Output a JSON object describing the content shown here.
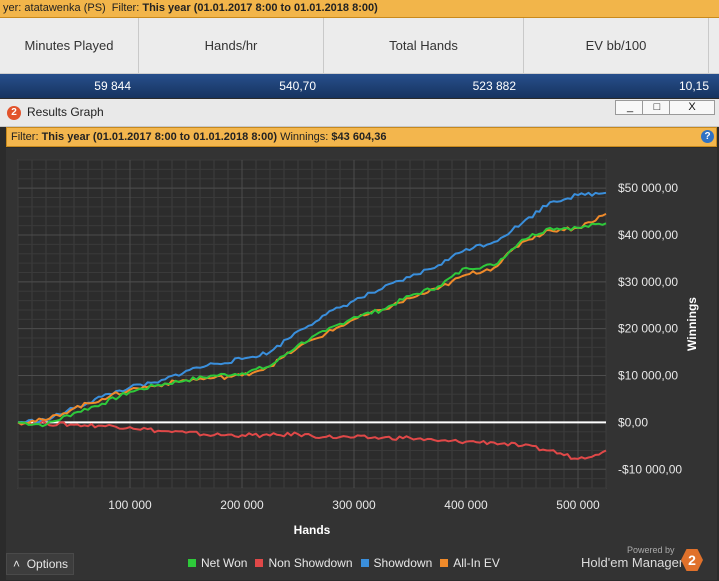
{
  "topbar": {
    "player_prefix": "yer: atatawenka (PS)",
    "filter_label": "Filter:",
    "filter_value": "This year (01.01.2017 8:00 to 01.01.2018 8:00)"
  },
  "stats": {
    "headers": [
      "Minutes Played",
      "Hands/hr",
      "Total Hands",
      "EV bb/100"
    ],
    "values": [
      "59 844",
      "540,70",
      "523 882",
      "10,15"
    ]
  },
  "window": {
    "badge": "2",
    "title": "Results Graph",
    "minimize": "_",
    "maximize": "□",
    "close": "X"
  },
  "filter_bar": {
    "label": "Filter:",
    "value": "This year (01.01.2017 8:00 to 01.01.2018 8:00)",
    "winnings_label": "Winnings:",
    "winnings_value": "$43 604,36",
    "help": "?"
  },
  "options_label": "Options",
  "powered_by": "Powered by",
  "brand_name": "Hold'em Manager",
  "brand_logo": "2",
  "colors": {
    "net_won": "#2ec93a",
    "non_showdown": "#e04848",
    "showdown": "#3a8fdc",
    "all_in_ev": "#f08a2a",
    "accent": "#f3b64d"
  },
  "chart_data": {
    "type": "line",
    "xlabel": "Hands",
    "ylabel": "Winnings",
    "xlim": [
      0,
      525000
    ],
    "ylim": [
      -14000,
      56000
    ],
    "x_ticks": [
      100000,
      200000,
      300000,
      400000,
      500000
    ],
    "x_tick_labels": [
      "100 000",
      "200 000",
      "300 000",
      "400 000",
      "500 000"
    ],
    "y_ticks": [
      50000,
      40000,
      30000,
      20000,
      10000,
      0,
      -10000
    ],
    "y_tick_labels": [
      "$50 000,00",
      "$40 000,00",
      "$30 000,00",
      "$20 000,00",
      "$10 000,00",
      "$0,00",
      "-$10 000,00"
    ],
    "grid": true,
    "legend": "bottom",
    "x": [
      0,
      25000,
      50000,
      75000,
      100000,
      125000,
      150000,
      175000,
      200000,
      225000,
      250000,
      275000,
      300000,
      325000,
      350000,
      375000,
      400000,
      425000,
      450000,
      475000,
      500000,
      525000
    ],
    "series": [
      {
        "name": "Net Won",
        "values": [
          0,
          -500,
          2000,
          4000,
          6500,
          8000,
          9000,
          10000,
          10500,
          12000,
          16500,
          19500,
          22500,
          24000,
          27000,
          29000,
          33000,
          33500,
          39000,
          41500,
          41500,
          42500
        ]
      },
      {
        "name": "Non Showdown",
        "values": [
          0,
          -200,
          -500,
          -700,
          -1000,
          -1800,
          -2200,
          -2700,
          -2700,
          -2800,
          -2500,
          -3100,
          -3200,
          -3300,
          -3300,
          -4000,
          -4100,
          -4300,
          -5000,
          -6000,
          -7800,
          -6000
        ]
      },
      {
        "name": "Showdown",
        "values": [
          0,
          500,
          3000,
          5500,
          7500,
          8500,
          11000,
          12500,
          13500,
          15000,
          19500,
          23000,
          26000,
          28500,
          31000,
          33500,
          37000,
          38500,
          42500,
          47000,
          48500,
          49000
        ]
      },
      {
        "name": "All-In EV",
        "values": [
          0,
          500,
          3000,
          5000,
          7000,
          8000,
          9000,
          9500,
          10000,
          12000,
          16000,
          19000,
          22000,
          24000,
          26500,
          28500,
          31500,
          33000,
          38500,
          41000,
          41500,
          44500
        ]
      }
    ]
  }
}
